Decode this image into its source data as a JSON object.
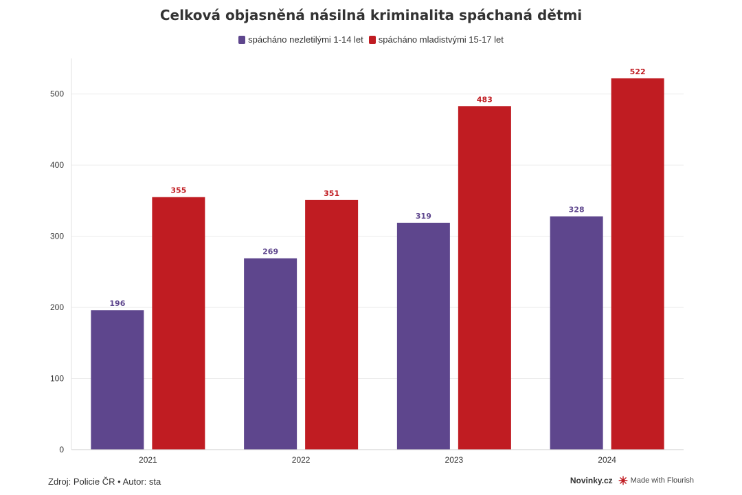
{
  "title": "Celková objasněná násilná kriminalita spáchaná dětmi",
  "colors": {
    "series1": "#5e468d",
    "series2": "#c01c22",
    "grid": "#ececec",
    "axis": "#333333"
  },
  "chart_data": {
    "type": "bar",
    "categories": [
      "2021",
      "2022",
      "2023",
      "2024"
    ],
    "series": [
      {
        "name": "spácháno nezletilými 1-14 let",
        "values": [
          196,
          269,
          319,
          328
        ]
      },
      {
        "name": "spácháno mladistvými 15-17 let",
        "values": [
          355,
          351,
          483,
          522
        ]
      }
    ],
    "ylim": [
      0,
      550
    ],
    "yticks": [
      0,
      100,
      200,
      300,
      400,
      500
    ],
    "grid": true,
    "legend": "top-center"
  },
  "footer": {
    "source": "Zdroj: Policie ČR • Autor: sta",
    "brand": "Novinky.cz",
    "flourish": "Made with Flourish"
  }
}
